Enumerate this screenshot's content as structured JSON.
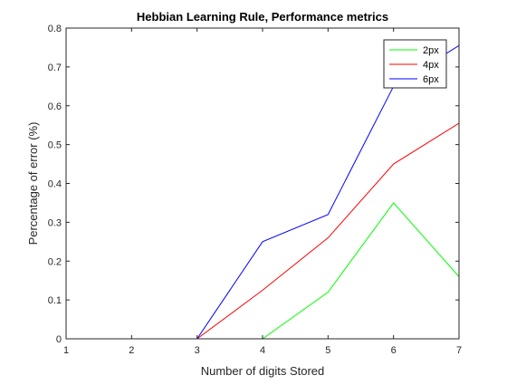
{
  "chart_data": {
    "type": "line",
    "title": "Hebbian Learning Rule, Performance metrics",
    "xlabel": "Number of digits Stored",
    "ylabel": "Percentage of error (%)",
    "x": [
      1,
      2,
      3,
      4,
      5,
      6,
      7
    ],
    "xlim": [
      1,
      7
    ],
    "ylim": [
      0,
      0.8
    ],
    "xticks": [
      "1",
      "2",
      "3",
      "4",
      "5",
      "6",
      "7"
    ],
    "yticks": [
      "0",
      "0.1",
      "0.2",
      "0.3",
      "0.4",
      "0.5",
      "0.6",
      "0.7",
      "0.8"
    ],
    "grid": false,
    "legend_position": "top-right",
    "series": [
      {
        "name": "2px",
        "color": "#00ff00",
        "values": [
          0,
          0,
          0,
          0,
          0.12,
          0.35,
          0.16
        ]
      },
      {
        "name": "4px",
        "color": "#ff0000",
        "values": [
          0,
          0,
          0,
          0.125,
          0.26,
          0.45,
          0.555
        ]
      },
      {
        "name": "6px",
        "color": "#0000ff",
        "values": [
          0,
          0,
          0,
          0.25,
          0.32,
          0.65,
          0.755
        ]
      }
    ]
  }
}
